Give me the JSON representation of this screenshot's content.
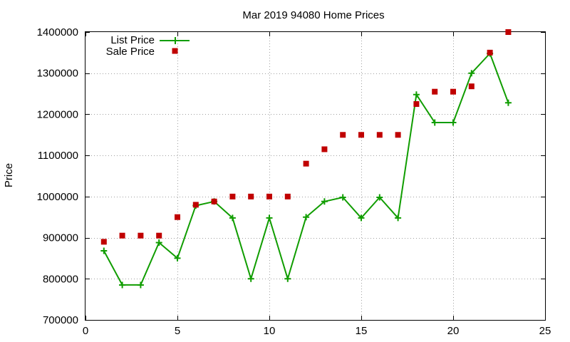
{
  "chart_data": {
    "type": "line",
    "title": "Mar 2019 94080 Home Prices",
    "xlabel": "",
    "ylabel": "Price",
    "xlim": [
      0,
      25
    ],
    "ylim": [
      700000,
      1400000
    ],
    "xticks": [
      "0",
      "5",
      "10",
      "15",
      "20",
      "25"
    ],
    "yticks": [
      "700000",
      "800000",
      "900000",
      "1000000",
      "1100000",
      "1200000",
      "1300000",
      "1400000"
    ],
    "grid": true,
    "legend_position": "top-left",
    "series": [
      {
        "name": "List Price",
        "style": "line+plus",
        "color": "#109d00",
        "x": [
          1,
          2,
          3,
          4,
          5,
          6,
          7,
          8,
          9,
          10,
          11,
          12,
          13,
          14,
          15,
          16,
          17,
          18,
          19,
          20,
          21,
          22,
          23
        ],
        "values": [
          868000,
          785000,
          785000,
          888000,
          850000,
          978000,
          988000,
          948000,
          800000,
          948000,
          800000,
          950000,
          988000,
          998000,
          948000,
          998000,
          948000,
          1248000,
          1180000,
          1180000,
          1300000,
          1348000,
          1228000
        ]
      },
      {
        "name": "Sale Price",
        "style": "square",
        "color": "#c00000",
        "x": [
          1,
          2,
          3,
          4,
          5,
          6,
          7,
          8,
          9,
          10,
          11,
          12,
          13,
          14,
          15,
          16,
          17,
          18,
          19,
          20,
          21,
          22,
          23
        ],
        "values": [
          890000,
          905000,
          905000,
          905000,
          950000,
          980000,
          988000,
          1000000,
          1000000,
          1000000,
          1000000,
          1080000,
          1115000,
          1150000,
          1150000,
          1150000,
          1150000,
          1225000,
          1255000,
          1255000,
          1268000,
          1350000,
          1400000
        ]
      }
    ]
  }
}
